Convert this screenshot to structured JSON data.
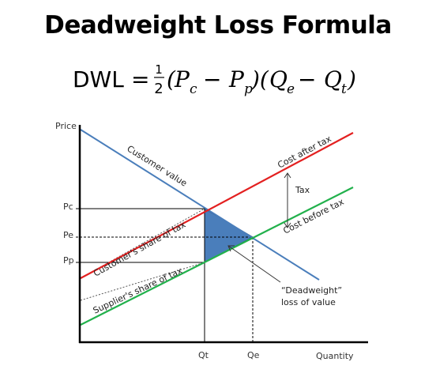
{
  "title": "Deadweight Loss Formula",
  "formula": {
    "lhs": "DWL",
    "equals": "=",
    "numerator": "1",
    "denominator": "2",
    "p_c": "P",
    "p_c_sub": "c",
    "p_p": "P",
    "p_p_sub": "p",
    "q_e": "Q",
    "q_e_sub": "e",
    "q_t": "Q",
    "q_t_sub": "t"
  },
  "diagram": {
    "y_axis_label": "Price",
    "x_axis_label": "Quantity",
    "y_ticks": {
      "pc": "Pc",
      "pe": "Pe",
      "pp": "Pp"
    },
    "x_ticks": {
      "qt": "Qt",
      "qe": "Qe"
    },
    "lines": {
      "customer_value": "Customer value",
      "cost_after_tax": "Cost after tax",
      "cost_before_tax": "Cost before tax",
      "customer_share": "Customer's share of tax",
      "supplier_share": "Supplier's share  of tax"
    },
    "annotations": {
      "tax": "Tax",
      "dwl_line1": "“Deadweight”",
      "dwl_line2": "loss of value"
    },
    "colors": {
      "demand": "#4a7ebb",
      "supply_after_tax": "#e32020",
      "supply_before_tax": "#22b14c",
      "dwl_fill": "#4a7ebb"
    }
  }
}
